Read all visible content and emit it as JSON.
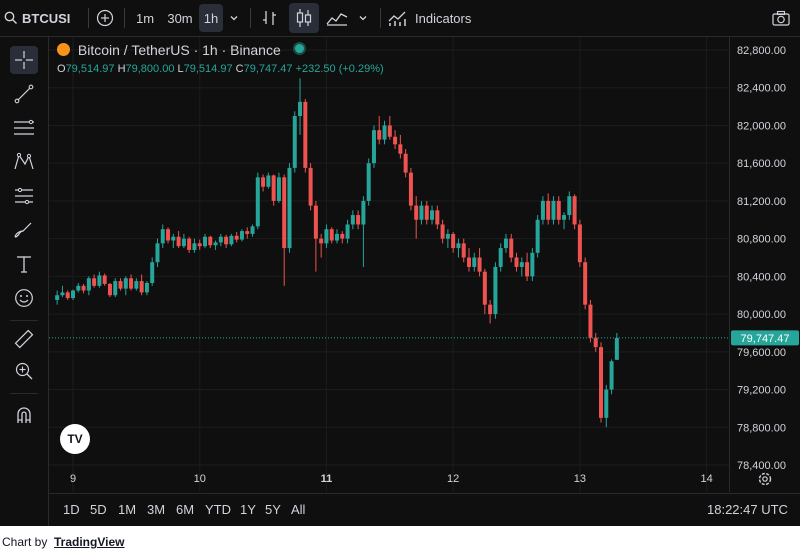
{
  "topbar": {
    "symbol": "BTCUSI",
    "intervals": [
      "1m",
      "30m",
      "1h"
    ],
    "active_interval": "1h",
    "indicators_label": "Indicators",
    "icons": [
      "search-icon",
      "add-compare-icon",
      "chevron-down-icon",
      "bar-style-icon",
      "candles-icon",
      "area-chart-icon",
      "indicators-icon",
      "camera-icon"
    ]
  },
  "legend": {
    "title": "Bitcoin / TetherUS · 1h · Binance",
    "open_label": "O",
    "open": "79,514.97",
    "high_label": "H",
    "high": "79,800.00",
    "low_label": "L",
    "low": "79,514.97",
    "close_label": "C",
    "close": "79,747.47",
    "change": "+232.50 (+0.29%)"
  },
  "left_tools": [
    "crosshair-icon",
    "trendline-icon",
    "fib-icon",
    "pattern-icon",
    "forecast-icon",
    "brush-icon",
    "text-icon",
    "emoji-icon",
    "ruler-icon",
    "zoom-icon",
    "magnet-icon"
  ],
  "logo": "TV",
  "range_buttons": [
    "1D",
    "5D",
    "1M",
    "3M",
    "6M",
    "YTD",
    "1Y",
    "5Y",
    "All"
  ],
  "clock": "18:22:47 UTC",
  "footer": {
    "prefix": "Chart by",
    "link": "TradingView"
  },
  "colors": {
    "up": "#26a69a",
    "down": "#ef5350",
    "background": "#0f0f0f",
    "grid": "#1e1e1e",
    "text": "#d1d4dc"
  },
  "chart_data": {
    "type": "candlestick",
    "ylim": [
      78400,
      82800
    ],
    "y_ticks": [
      "82,800.00",
      "82,400.00",
      "82,000.00",
      "81,600.00",
      "81,200.00",
      "80,800.00",
      "80,400.00",
      "80,000.00",
      "79,600.00",
      "79,200.00",
      "78,800.00",
      "78,400.00"
    ],
    "y_tick_values": [
      82800,
      82400,
      82000,
      81600,
      81200,
      80800,
      80400,
      80000,
      79600,
      79200,
      78800,
      78400
    ],
    "x_ticks": [
      "9",
      "10",
      "11",
      "12",
      "13",
      "14"
    ],
    "x_tick_hours": [
      0,
      24,
      48,
      72,
      96,
      120
    ],
    "bold_x_tick": "11",
    "last_price": "79,747.47",
    "last_price_value": 79747.47,
    "candles": [
      [
        80150,
        80250,
        80100,
        80200
      ],
      [
        80200,
        80300,
        80180,
        80230
      ],
      [
        80230,
        80250,
        80150,
        80170
      ],
      [
        80170,
        80260,
        80150,
        80250
      ],
      [
        80250,
        80330,
        80230,
        80300
      ],
      [
        80300,
        80320,
        80220,
        80250
      ],
      [
        80250,
        80400,
        80200,
        80380
      ],
      [
        80380,
        80420,
        80280,
        80300
      ],
      [
        80300,
        80450,
        80280,
        80410
      ],
      [
        80410,
        80430,
        80300,
        80320
      ],
      [
        80320,
        80330,
        80180,
        80200
      ],
      [
        80200,
        80380,
        80180,
        80350
      ],
      [
        80350,
        80380,
        80250,
        80270
      ],
      [
        80270,
        80400,
        80200,
        80380
      ],
      [
        80380,
        80420,
        80250,
        80270
      ],
      [
        80270,
        80380,
        80250,
        80350
      ],
      [
        80350,
        80420,
        80200,
        80230
      ],
      [
        80230,
        80350,
        80200,
        80330
      ],
      [
        80330,
        80600,
        80300,
        80550
      ],
      [
        80550,
        80800,
        80500,
        80750
      ],
      [
        80750,
        80950,
        80700,
        80900
      ],
      [
        80900,
        80920,
        80750,
        80780
      ],
      [
        80780,
        80850,
        80700,
        80820
      ],
      [
        80820,
        80880,
        80700,
        80720
      ],
      [
        80720,
        80850,
        80700,
        80800
      ],
      [
        80800,
        80820,
        80650,
        80680
      ],
      [
        80680,
        80800,
        80650,
        80750
      ],
      [
        80750,
        80790,
        80680,
        80720
      ],
      [
        80720,
        80850,
        80700,
        80820
      ],
      [
        80820,
        80830,
        80700,
        80730
      ],
      [
        80730,
        80780,
        80680,
        80760
      ],
      [
        80760,
        80850,
        80720,
        80820
      ],
      [
        80820,
        80840,
        80700,
        80740
      ],
      [
        80740,
        80850,
        80720,
        80830
      ],
      [
        80830,
        80870,
        80760,
        80790
      ],
      [
        80790,
        80900,
        80770,
        80880
      ],
      [
        80880,
        80920,
        80800,
        80850
      ],
      [
        80850,
        80950,
        80820,
        80930
      ],
      [
        80930,
        81500,
        80900,
        81450
      ],
      [
        81450,
        81480,
        81300,
        81350
      ],
      [
        81350,
        81500,
        81330,
        81470
      ],
      [
        81470,
        81480,
        81150,
        81200
      ],
      [
        81200,
        81500,
        81180,
        81450
      ],
      [
        81450,
        81480,
        80300,
        80700
      ],
      [
        80700,
        81600,
        80650,
        81550
      ],
      [
        81550,
        82150,
        81500,
        82100
      ],
      [
        82100,
        82500,
        81900,
        82250
      ],
      [
        82250,
        82280,
        81500,
        81550
      ],
      [
        81550,
        81600,
        81100,
        81150
      ],
      [
        81150,
        81200,
        80450,
        80800
      ],
      [
        80800,
        80850,
        80600,
        80750
      ],
      [
        80750,
        80950,
        80700,
        80900
      ],
      [
        80900,
        80920,
        80750,
        80780
      ],
      [
        80780,
        80900,
        80750,
        80850
      ],
      [
        80850,
        80880,
        80750,
        80800
      ],
      [
        80800,
        81000,
        80750,
        80950
      ],
      [
        80950,
        81100,
        80900,
        81050
      ],
      [
        81050,
        81100,
        80900,
        80950
      ],
      [
        80950,
        81250,
        80500,
        81200
      ],
      [
        81200,
        81650,
        81150,
        81600
      ],
      [
        81600,
        82000,
        81550,
        81950
      ],
      [
        81950,
        82100,
        81800,
        81850
      ],
      [
        81850,
        82050,
        81800,
        82000
      ],
      [
        82000,
        82100,
        81850,
        81880
      ],
      [
        81880,
        81950,
        81750,
        81800
      ],
      [
        81800,
        81900,
        81650,
        81700
      ],
      [
        81700,
        81750,
        81450,
        81500
      ],
      [
        81500,
        81550,
        81100,
        81150
      ],
      [
        81150,
        81250,
        80800,
        81000
      ],
      [
        81000,
        81200,
        80950,
        81150
      ],
      [
        81150,
        81200,
        80950,
        81000
      ],
      [
        81000,
        81150,
        80950,
        81100
      ],
      [
        81100,
        81150,
        80900,
        80950
      ],
      [
        80950,
        81000,
        80750,
        80800
      ],
      [
        80800,
        80900,
        80700,
        80850
      ],
      [
        80850,
        80870,
        80650,
        80700
      ],
      [
        80700,
        80800,
        80600,
        80750
      ],
      [
        80750,
        80800,
        80550,
        80600
      ],
      [
        80600,
        80700,
        80450,
        80500
      ],
      [
        80500,
        80650,
        80450,
        80600
      ],
      [
        80600,
        80700,
        80400,
        80450
      ],
      [
        80450,
        80480,
        80000,
        80100
      ],
      [
        80100,
        80150,
        79900,
        80000
      ],
      [
        80000,
        80550,
        79950,
        80500
      ],
      [
        80500,
        80750,
        80450,
        80700
      ],
      [
        80700,
        80850,
        80650,
        80800
      ],
      [
        80800,
        80850,
        80550,
        80600
      ],
      [
        80600,
        80650,
        80450,
        80500
      ],
      [
        80500,
        80600,
        80400,
        80550
      ],
      [
        80550,
        80650,
        80350,
        80400
      ],
      [
        80400,
        80700,
        80350,
        80650
      ],
      [
        80650,
        81050,
        80600,
        81000
      ],
      [
        81000,
        81250,
        80950,
        81200
      ],
      [
        81200,
        81280,
        80950,
        81000
      ],
      [
        81000,
        81250,
        80950,
        81200
      ],
      [
        81200,
        81250,
        80950,
        81000
      ],
      [
        81000,
        81080,
        80900,
        81050
      ],
      [
        81050,
        81300,
        81000,
        81250
      ],
      [
        81250,
        81270,
        80900,
        80950
      ],
      [
        80950,
        81000,
        80500,
        80550
      ],
      [
        80550,
        80600,
        80050,
        80100
      ],
      [
        80100,
        80150,
        79700,
        79750
      ],
      [
        79750,
        79800,
        79600,
        79650
      ],
      [
        79650,
        79700,
        78850,
        78900
      ],
      [
        78900,
        79250,
        78800,
        79200
      ],
      [
        79200,
        79520,
        79150,
        79500
      ],
      [
        79514.97,
        79800,
        79514.97,
        79747.47
      ]
    ]
  }
}
